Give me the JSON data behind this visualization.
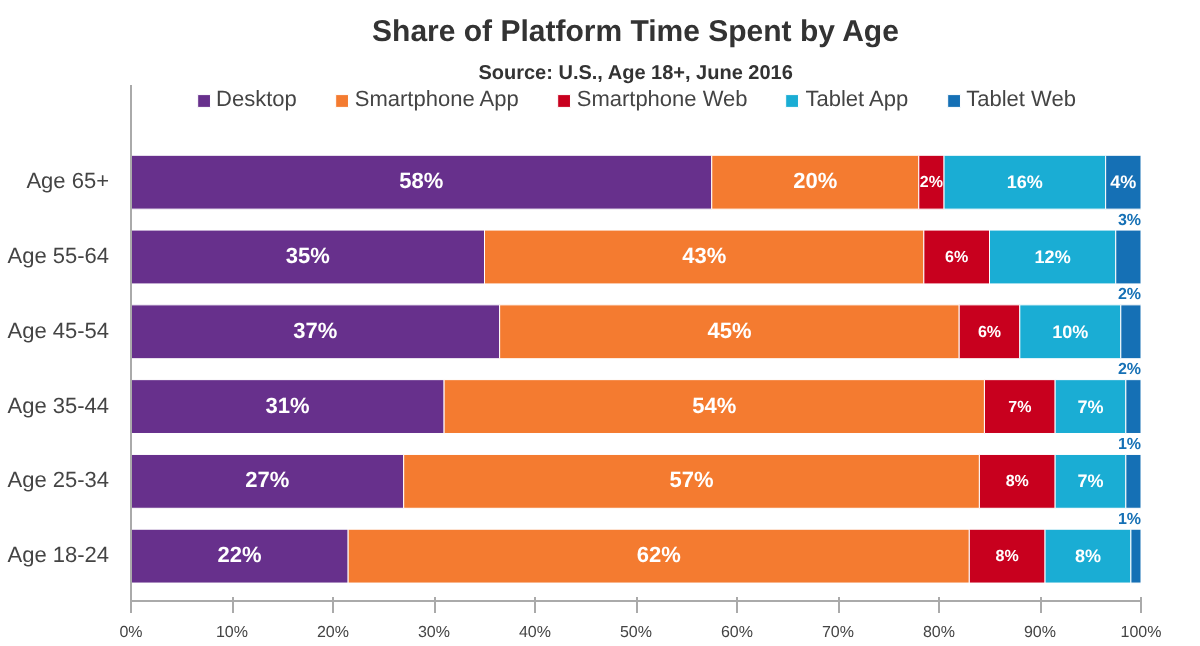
{
  "chart_data": {
    "type": "bar",
    "orientation": "horizontal",
    "stacked": true,
    "title": "Share of Platform Time Spent by Age",
    "subtitle": "Source: U.S., Age 18+, June 2016",
    "categories": [
      "Age 65+",
      "Age 55-64",
      "Age 45-54",
      "Age 35-44",
      "Age 25-34",
      "Age 18-24"
    ],
    "series": [
      {
        "name": "Desktop",
        "color": "#67308c",
        "values": [
          57.5,
          35,
          36.5,
          31,
          27,
          21.5
        ],
        "value_labels": [
          "58%",
          "35%",
          "37%",
          "31%",
          "27%",
          "22%"
        ]
      },
      {
        "name": "Smartphone App",
        "color": "#f47b30",
        "values": [
          20.5,
          43.5,
          45.5,
          53.5,
          57,
          61.5
        ],
        "value_labels": [
          "20%",
          "43%",
          "45%",
          "54%",
          "57%",
          "62%"
        ]
      },
      {
        "name": "Smartphone Web",
        "color": "#c8001e",
        "values": [
          2.5,
          6.5,
          6,
          7,
          7.5,
          7.5
        ],
        "value_labels": [
          "2%",
          "6%",
          "6%",
          "7%",
          "8%",
          "8%"
        ]
      },
      {
        "name": "Tablet App",
        "color": "#1aadd4",
        "values": [
          16,
          12.5,
          10,
          7,
          7,
          8.5
        ],
        "value_labels": [
          "16%",
          "12%",
          "10%",
          "7%",
          "7%",
          "8%"
        ]
      },
      {
        "name": "Tablet Web",
        "color": "#1570b5",
        "values": [
          3.5,
          2.5,
          2,
          1.5,
          1.5,
          1
        ],
        "value_labels": [
          "4%",
          "3%",
          "2%",
          "2%",
          "1%",
          "1%"
        ]
      }
    ],
    "xlim": [
      0,
      100
    ],
    "xticks": [
      {
        "value": 0,
        "label": "0%"
      },
      {
        "value": 10,
        "label": "10%"
      },
      {
        "value": 20,
        "label": "20%"
      },
      {
        "value": 30,
        "label": "30%"
      },
      {
        "value": 40,
        "label": "40%"
      },
      {
        "value": 50,
        "label": "50%"
      },
      {
        "value": 60,
        "label": "60%"
      },
      {
        "value": 70,
        "label": "70%"
      },
      {
        "value": 80,
        "label": "80%"
      },
      {
        "value": 90,
        "label": "90%"
      },
      {
        "value": 100,
        "label": "100%"
      }
    ],
    "legend": "top",
    "grid": false
  }
}
